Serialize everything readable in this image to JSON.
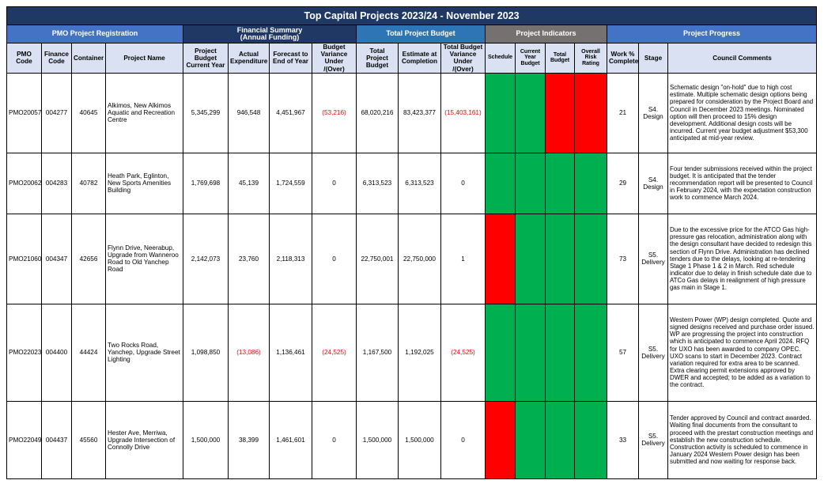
{
  "title": "Top Capital Projects 2023/24 - November 2023",
  "groups": {
    "registration": "PMO Project Registration",
    "financial": "Financial Summary\n(Annual Funding)",
    "total_budget": "Total Project Budget",
    "indicators": "Project Indicators",
    "progress": "Project Progress"
  },
  "columns": {
    "pmo_code": "PMO Code",
    "finance_code": "Finance Code",
    "container": "Container",
    "project_name": "Project Name",
    "project_budget_current_year": "Project Budget Current Year",
    "actual_expenditure": "Actual Expenditure",
    "forecast_to_end_of_year": "Forecast to End of Year",
    "budget_variance": "Budget Variance Under /(Over)",
    "total_project_budget": "Total Project Budget",
    "estimate_at_completion": "Estimate at Completion",
    "total_budget_variance": "Total Budget Variance Under /(Over)",
    "schedule": "Schedule",
    "current_year_budget": "Current Year Budget",
    "total_budget": "Total Budget",
    "overall_risk_rating": "Overall Risk Rating",
    "work_pct_complete": "Work % Complete",
    "stage": "Stage",
    "council_comments": "Council Comments"
  },
  "indicator_colors": {
    "green": "#00b050",
    "red": "#ff0000"
  },
  "rows": [
    {
      "pmo_code": "PMO20057",
      "finance_code": "004277",
      "container": "40645",
      "project_name": "Alkimos, New Alkimos Aquatic and Recreation Centre",
      "project_budget_current_year": "5,345,299",
      "actual_expenditure": "946,548",
      "forecast_to_end_of_year": "4,451,967",
      "budget_variance": "(53,216)",
      "total_project_budget": "68,020,216",
      "estimate_at_completion": "83,423,377",
      "total_budget_variance": "(15,403,161)",
      "indicators": {
        "schedule": "green",
        "current_year_budget": "green",
        "total_budget": "red",
        "overall_risk_rating": "red"
      },
      "work_pct_complete": "21",
      "stage": "S4. Design",
      "council_comments": "Schematic design \"on-hold\" due to high cost estimate.  Multiple schematic design options being prepared for consideration by the Project Board and Council in December 2023 meetings.  Nominated option will then proceed to 15% design development.  Additional design costs will be incurred. Current year budget adjustment $53,300 anticipated at mid-year review."
    },
    {
      "pmo_code": "PMO20062",
      "finance_code": "004283",
      "container": "40782",
      "project_name": "Heath Park, Eglinton, New Sports Amenities Building",
      "project_budget_current_year": "1,769,698",
      "actual_expenditure": "45,139",
      "forecast_to_end_of_year": "1,724,559",
      "budget_variance": "0",
      "total_project_budget": "6,313,523",
      "estimate_at_completion": "6,313,523",
      "total_budget_variance": "0",
      "indicators": {
        "schedule": "green",
        "current_year_budget": "green",
        "total_budget": "green",
        "overall_risk_rating": "green"
      },
      "work_pct_complete": "29",
      "stage": "S4. Design",
      "council_comments": "Four tender submissions received within the project budget. It is anticipated that the tender recommendation report will be presented to Council in February 2024, with the expectation construction work to commence March 2024."
    },
    {
      "pmo_code": "PMO21060",
      "finance_code": "004347",
      "container": "42656",
      "project_name": "Flynn Drive, Neerabup, Upgrade from Wanneroo Road to Old Yanchep Road",
      "project_budget_current_year": "2,142,073",
      "actual_expenditure": "23,760",
      "forecast_to_end_of_year": "2,118,313",
      "budget_variance": "0",
      "total_project_budget": "22,750,001",
      "estimate_at_completion": "22,750,000",
      "total_budget_variance": "1",
      "indicators": {
        "schedule": "red",
        "current_year_budget": "green",
        "total_budget": "green",
        "overall_risk_rating": "green"
      },
      "work_pct_complete": "73",
      "stage": "S5. Delivery",
      "council_comments": "Due to the excessive price for the ATCO Gas high-pressure gas relocation, administration along with the design consultant have decided to redesign this section of Flynn Drive. Administration has declined tenders due to the delays, looking at re-tendering Stage 1 Phase 1 & 2 in March. Red schedule indicator due to delay in finish schedule date due to ATCo Gas delays in realignment of high pressure gas main in Stage 1."
    },
    {
      "pmo_code": "PMO22023",
      "finance_code": "004400",
      "container": "44424",
      "project_name": "Two Rocks Road, Yanchep, Upgrade Street Lighting",
      "project_budget_current_year": "1,098,850",
      "actual_expenditure": "(13,086)",
      "forecast_to_end_of_year": "1,136,461",
      "budget_variance": "(24,525)",
      "total_project_budget": "1,167,500",
      "estimate_at_completion": "1,192,025",
      "total_budget_variance": "(24,525)",
      "indicators": {
        "schedule": "green",
        "current_year_budget": "green",
        "total_budget": "green",
        "overall_risk_rating": "green"
      },
      "work_pct_complete": "57",
      "stage": "S5. Delivery",
      "council_comments": "Western Power (WP) design completed. Quote and signed designs received and purchase order issued. WP are progressing the project into construction which is anticipated to commence April 2024. RFQ for UXO has been awarded to company OPEC. UXO scans to start in December 2023. Contract variation required for extra area to be scanned. Extra clearing permit extensions approved by DWER and accepted; to be added as a variation to the contract."
    },
    {
      "pmo_code": "PMO22049",
      "finance_code": "004437",
      "container": "45560",
      "project_name": "Hester Ave, Merriwa, Upgrade Intersection of Connolly Drive",
      "project_budget_current_year": "1,500,000",
      "actual_expenditure": "38,399",
      "forecast_to_end_of_year": "1,461,601",
      "budget_variance": "0",
      "total_project_budget": "1,500,000",
      "estimate_at_completion": "1,500,000",
      "total_budget_variance": "0",
      "indicators": {
        "schedule": "red",
        "current_year_budget": "green",
        "total_budget": "green",
        "overall_risk_rating": "green"
      },
      "work_pct_complete": "33",
      "stage": "S5. Delivery",
      "council_comments": "Tender approved by Council and contract awarded. Waiting final documents from the consultant to proceed with the prestart construction meetings and establish the new construction schedule. Construction activity is scheduled to commence in January 2024 Western Power design has been submitted and now waiting for response back."
    }
  ]
}
